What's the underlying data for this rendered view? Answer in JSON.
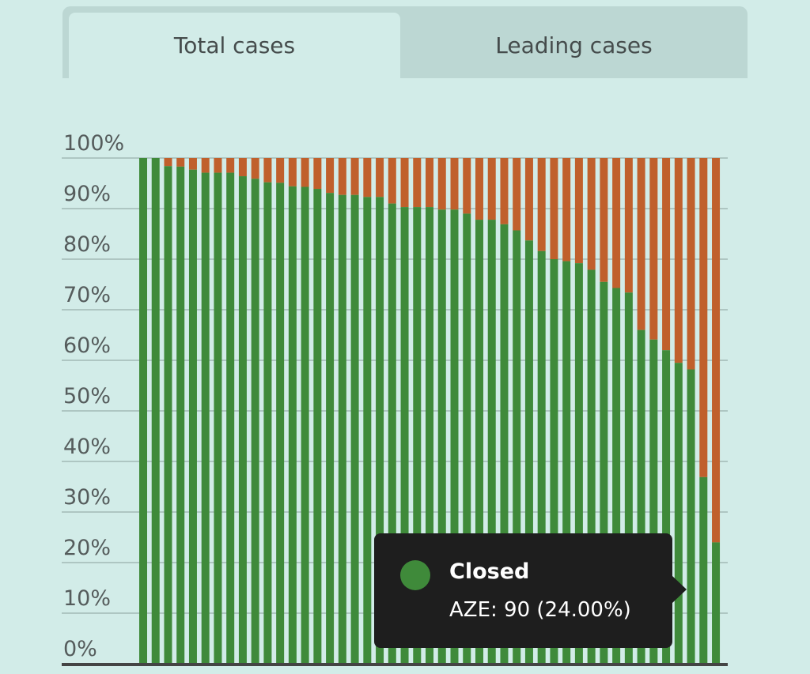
{
  "tabs": [
    {
      "label": "Total cases",
      "active": true
    },
    {
      "label": "Leading cases",
      "active": false
    }
  ],
  "colors": {
    "closed": "#3f8a3a",
    "other": "#c0602c",
    "background": "#d2ece8",
    "tab_inactive": "#bcd7d3"
  },
  "chart_data": {
    "type": "bar",
    "stacked": true,
    "normalized": true,
    "title": "",
    "xlabel": "",
    "ylabel": "",
    "ylim": [
      0,
      100
    ],
    "yticks": [
      "0%",
      "10%",
      "20%",
      "30%",
      "40%",
      "50%",
      "60%",
      "70%",
      "80%",
      "90%",
      "100%"
    ],
    "grid": true,
    "series": [
      {
        "name": "Closed",
        "color": "#3f8a3a",
        "values": [
          100,
          100,
          98.4,
          98.3,
          97.7,
          97.1,
          97.1,
          97.1,
          96.4,
          95.9,
          95.2,
          95.1,
          94.4,
          94.3,
          93.9,
          93.1,
          92.7,
          92.7,
          92.3,
          92.3,
          91.0,
          90.3,
          90.3,
          90.3,
          89.8,
          89.8,
          89.0,
          87.8,
          87.8,
          86.9,
          85.7,
          83.7,
          81.6,
          80.0,
          79.6,
          79.2,
          77.9,
          75.5,
          74.3,
          73.4,
          66.0,
          64.1,
          62.0,
          59.5,
          58.2,
          36.9,
          24.0
        ]
      },
      {
        "color": "#c0602c",
        "remainder_of": 100
      }
    ]
  },
  "tooltip": {
    "series": "Closed",
    "text": "AZE: 90 (24.00%)",
    "color": "#3f8a3a"
  }
}
